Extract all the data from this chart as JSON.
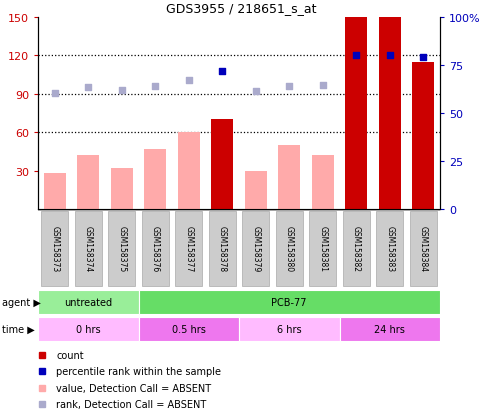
{
  "title": "GDS3955 / 218651_s_at",
  "samples": [
    "GSM158373",
    "GSM158374",
    "GSM158375",
    "GSM158376",
    "GSM158377",
    "GSM158378",
    "GSM158379",
    "GSM158380",
    "GSM158381",
    "GSM158382",
    "GSM158383",
    "GSM158384"
  ],
  "count_values": [
    28,
    42,
    32,
    47,
    60,
    70,
    30,
    50,
    42,
    150,
    150,
    115
  ],
  "count_absent": [
    true,
    true,
    true,
    true,
    true,
    false,
    true,
    true,
    true,
    false,
    false,
    false
  ],
  "rank_values": [
    91,
    95,
    93,
    96,
    101,
    108,
    92,
    96,
    97,
    120,
    120,
    119
  ],
  "rank_absent": [
    true,
    true,
    true,
    true,
    true,
    false,
    true,
    true,
    true,
    false,
    false,
    false
  ],
  "ylim_left": [
    0,
    150
  ],
  "ylim_right": [
    0,
    100
  ],
  "yticks_left": [
    30,
    60,
    90,
    120,
    150
  ],
  "yticks_right": [
    0,
    25,
    50,
    75,
    100
  ],
  "agent_groups": [
    {
      "label": "untreated",
      "start": 0,
      "end": 3,
      "color": "#99ee99"
    },
    {
      "label": "PCB-77",
      "start": 3,
      "end": 12,
      "color": "#66dd66"
    }
  ],
  "time_groups": [
    {
      "label": "0 hrs",
      "start": 0,
      "end": 3,
      "color": "#ffbbff"
    },
    {
      "label": "0.5 hrs",
      "start": 3,
      "end": 6,
      "color": "#ee77ee"
    },
    {
      "label": "6 hrs",
      "start": 6,
      "end": 9,
      "color": "#ffbbff"
    },
    {
      "label": "24 hrs",
      "start": 9,
      "end": 12,
      "color": "#ee77ee"
    }
  ],
  "bar_color_present": "#cc0000",
  "bar_color_absent": "#ffaaaa",
  "rank_color_present": "#0000bb",
  "rank_color_absent": "#aaaacc",
  "bar_width": 0.65,
  "bg_color": "#ffffff",
  "label_color_left": "#cc0000",
  "label_color_right": "#0000bb",
  "gridline_color": "#000000",
  "sample_box_color": "#cccccc",
  "sample_box_edge": "#aaaaaa"
}
